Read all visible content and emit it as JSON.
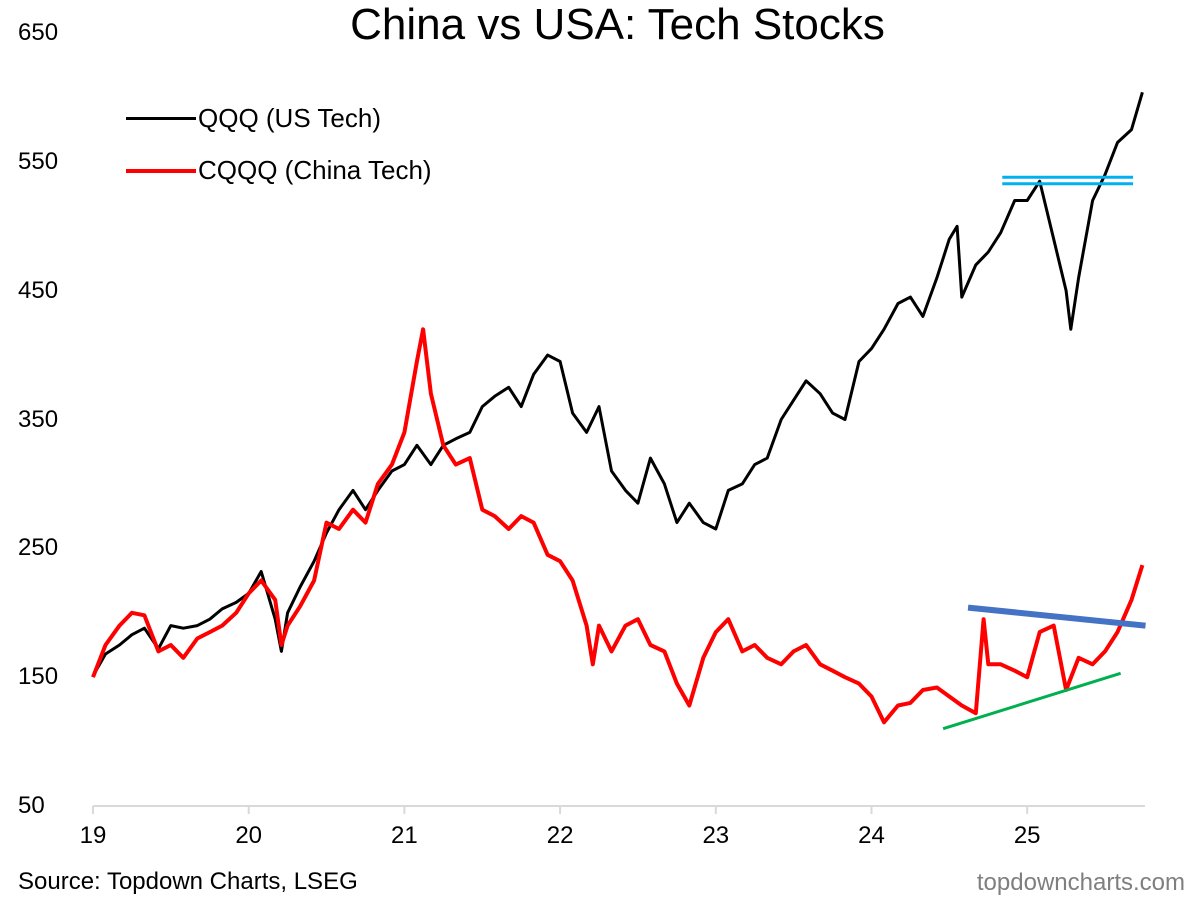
{
  "chart_data": {
    "type": "line",
    "title": "China vs USA: Tech Stocks",
    "xlabel": "",
    "ylabel": "",
    "ylim": [
      50,
      650
    ],
    "xlim": [
      2019,
      2025.75
    ],
    "y_ticks": [
      "650",
      "550",
      "450",
      "350",
      "250",
      "150",
      "50"
    ],
    "y_tick_values": [
      650,
      550,
      450,
      350,
      250,
      150,
      50
    ],
    "x_ticks": [
      "19",
      "20",
      "21",
      "22",
      "23",
      "24",
      "25"
    ],
    "x_tick_values": [
      2019,
      2020,
      2021,
      2022,
      2023,
      2024,
      2025
    ],
    "grid": false,
    "legend_position": "top-left",
    "series": [
      {
        "name": "QQQ (US Tech)",
        "color": "#000000",
        "x": [
          2019.0,
          2019.08,
          2019.17,
          2019.25,
          2019.33,
          2019.42,
          2019.5,
          2019.58,
          2019.67,
          2019.75,
          2019.83,
          2019.92,
          2020.0,
          2020.08,
          2020.17,
          2020.21,
          2020.25,
          2020.33,
          2020.42,
          2020.5,
          2020.58,
          2020.67,
          2020.75,
          2020.83,
          2020.92,
          2021.0,
          2021.08,
          2021.17,
          2021.25,
          2021.33,
          2021.42,
          2021.5,
          2021.58,
          2021.67,
          2021.75,
          2021.83,
          2021.92,
          2022.0,
          2022.08,
          2022.17,
          2022.25,
          2022.33,
          2022.42,
          2022.5,
          2022.58,
          2022.67,
          2022.75,
          2022.83,
          2022.92,
          2023.0,
          2023.08,
          2023.17,
          2023.25,
          2023.33,
          2023.42,
          2023.5,
          2023.58,
          2023.67,
          2023.75,
          2023.83,
          2023.92,
          2024.0,
          2024.08,
          2024.17,
          2024.25,
          2024.33,
          2024.42,
          2024.5,
          2024.55,
          2024.58,
          2024.67,
          2024.75,
          2024.83,
          2024.92,
          2025.0,
          2025.08,
          2025.17,
          2025.25,
          2025.28,
          2025.33,
          2025.42,
          2025.5,
          2025.58,
          2025.67,
          2025.74
        ],
        "values": [
          151,
          168,
          175,
          183,
          188,
          172,
          190,
          188,
          190,
          195,
          203,
          208,
          215,
          232,
          195,
          170,
          200,
          220,
          240,
          262,
          280,
          295,
          280,
          295,
          310,
          315,
          330,
          315,
          330,
          335,
          340,
          360,
          368,
          375,
          360,
          385,
          400,
          395,
          355,
          340,
          360,
          310,
          295,
          285,
          320,
          300,
          270,
          285,
          270,
          265,
          295,
          300,
          315,
          320,
          350,
          365,
          380,
          370,
          355,
          350,
          395,
          405,
          420,
          440,
          445,
          430,
          460,
          490,
          500,
          445,
          470,
          480,
          495,
          520,
          520,
          535,
          490,
          450,
          420,
          460,
          520,
          540,
          565,
          575,
          604
        ]
      },
      {
        "name": "CQQQ (China Tech)",
        "color": "#ff0000",
        "x": [
          2019.0,
          2019.08,
          2019.17,
          2019.25,
          2019.33,
          2019.42,
          2019.5,
          2019.58,
          2019.67,
          2019.75,
          2019.83,
          2019.92,
          2020.0,
          2020.08,
          2020.17,
          2020.21,
          2020.25,
          2020.33,
          2020.42,
          2020.5,
          2020.58,
          2020.67,
          2020.75,
          2020.83,
          2020.92,
          2021.0,
          2021.08,
          2021.12,
          2021.17,
          2021.25,
          2021.33,
          2021.42,
          2021.5,
          2021.58,
          2021.67,
          2021.75,
          2021.83,
          2021.92,
          2022.0,
          2022.08,
          2022.17,
          2022.21,
          2022.25,
          2022.33,
          2022.42,
          2022.5,
          2022.58,
          2022.67,
          2022.75,
          2022.83,
          2022.92,
          2023.0,
          2023.08,
          2023.17,
          2023.25,
          2023.33,
          2023.42,
          2023.5,
          2023.58,
          2023.67,
          2023.75,
          2023.83,
          2023.92,
          2024.0,
          2024.08,
          2024.17,
          2024.25,
          2024.33,
          2024.42,
          2024.5,
          2024.58,
          2024.67,
          2024.72,
          2024.75,
          2024.83,
          2024.92,
          2025.0,
          2025.08,
          2025.17,
          2025.25,
          2025.33,
          2025.42,
          2025.5,
          2025.58,
          2025.67,
          2025.74
        ],
        "values": [
          150,
          175,
          190,
          200,
          198,
          170,
          175,
          165,
          180,
          185,
          190,
          200,
          215,
          225,
          210,
          175,
          190,
          205,
          225,
          270,
          265,
          280,
          270,
          300,
          315,
          340,
          395,
          420,
          370,
          330,
          315,
          320,
          280,
          275,
          265,
          275,
          270,
          245,
          240,
          225,
          190,
          160,
          190,
          170,
          190,
          195,
          175,
          170,
          145,
          128,
          165,
          185,
          195,
          170,
          175,
          165,
          160,
          170,
          175,
          160,
          155,
          150,
          145,
          135,
          115,
          128,
          130,
          140,
          142,
          135,
          128,
          122,
          195,
          160,
          160,
          155,
          150,
          185,
          190,
          140,
          165,
          160,
          170,
          185,
          210,
          237
        ]
      }
    ],
    "annotations": [
      {
        "type": "horizontal-line",
        "color": "#00b0f0",
        "x": [
          2024.84,
          2025.68
        ],
        "y": 538,
        "label": "resistance-upper"
      },
      {
        "type": "horizontal-line",
        "color": "#00b0f0",
        "x": [
          2024.84,
          2025.68
        ],
        "y": 533,
        "label": "resistance-lower"
      },
      {
        "type": "trend-line",
        "color": "#4472c4",
        "x": [
          2024.62,
          2025.76
        ],
        "y": [
          204,
          190
        ],
        "label": "cqqq-resistance"
      },
      {
        "type": "trend-line",
        "color": "#00b050",
        "x": [
          2024.46,
          2025.6
        ],
        "y": [
          110,
          153
        ],
        "label": "cqqq-support"
      }
    ]
  },
  "footer": {
    "source": "Source: Topdown Charts, LSEG",
    "brand": "topdowncharts.com"
  }
}
